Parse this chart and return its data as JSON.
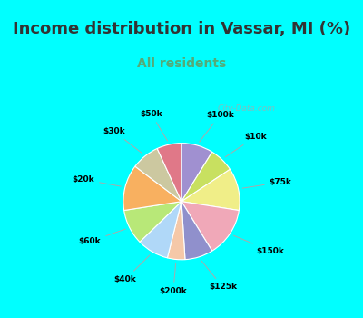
{
  "title": "Income distribution in Vassar, MI (%)",
  "subtitle": "All residents",
  "title_fontsize": 13,
  "subtitle_fontsize": 10,
  "title_color": "#333333",
  "subtitle_color": "#55aa77",
  "background_color": "#00FFFF",
  "chart_bg": "#e0f5ee",
  "watermark": "City-Data.com",
  "slices": [
    {
      "label": "$100k",
      "value": 9,
      "color": "#a090d0"
    },
    {
      "label": "$10k",
      "value": 7,
      "color": "#c8e060"
    },
    {
      "label": "$75k",
      "value": 12,
      "color": "#f0ee88"
    },
    {
      "label": "$150k",
      "value": 14,
      "color": "#f0a8b8"
    },
    {
      "label": "$125k",
      "value": 8,
      "color": "#9090cc"
    },
    {
      "label": "$200k",
      "value": 5,
      "color": "#f5c8a8"
    },
    {
      "label": "$40k",
      "value": 9,
      "color": "#b0d8f8"
    },
    {
      "label": "$60k",
      "value": 10,
      "color": "#b8e878"
    },
    {
      "label": "$20k",
      "value": 13,
      "color": "#f8b060"
    },
    {
      "label": "$30k",
      "value": 8,
      "color": "#ccc8a0"
    },
    {
      "label": "$50k",
      "value": 7,
      "color": "#e07888"
    }
  ]
}
